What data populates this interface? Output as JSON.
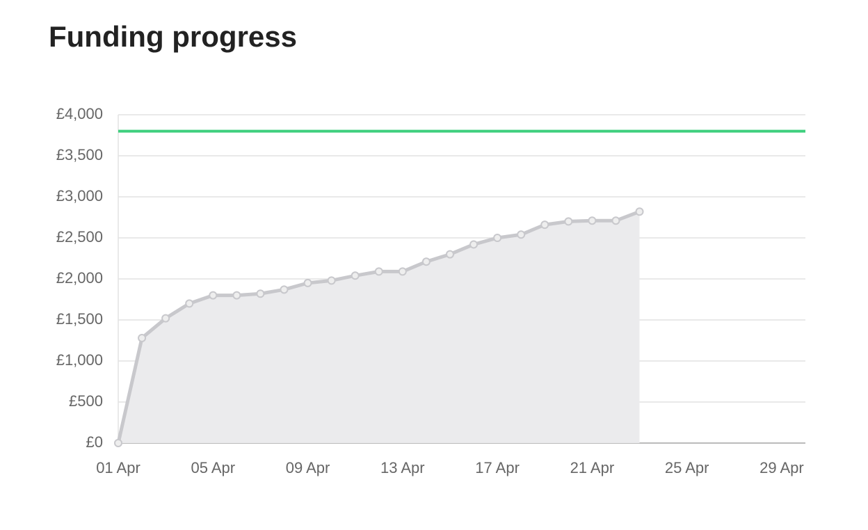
{
  "chart_data": {
    "type": "area",
    "title": "Funding progress",
    "x": [
      "01 Apr",
      "02 Apr",
      "03 Apr",
      "04 Apr",
      "05 Apr",
      "06 Apr",
      "07 Apr",
      "08 Apr",
      "09 Apr",
      "10 Apr",
      "11 Apr",
      "12 Apr",
      "13 Apr",
      "14 Apr",
      "15 Apr",
      "16 Apr",
      "17 Apr",
      "18 Apr",
      "19 Apr",
      "20 Apr",
      "21 Apr",
      "22 Apr",
      "23 Apr"
    ],
    "series": [
      {
        "name": "Funding",
        "color": "#c8c8cc",
        "fill": "#ebebed",
        "values": [
          0,
          1280,
          1520,
          1700,
          1800,
          1800,
          1820,
          1870,
          1950,
          1980,
          2040,
          2090,
          2090,
          2210,
          2300,
          2420,
          2500,
          2540,
          2660,
          2700,
          2710,
          2710,
          2820
        ]
      }
    ],
    "target": {
      "value": 3800,
      "color": "#3ecf7e"
    },
    "xlim": [
      "01 Apr",
      "30 Apr"
    ],
    "xticks": [
      "01 Apr",
      "05 Apr",
      "09 Apr",
      "13 Apr",
      "17 Apr",
      "21 Apr",
      "25 Apr",
      "29 Apr"
    ],
    "ylim": [
      0,
      4000
    ],
    "yticks": [
      {
        "value": 0,
        "label": "£0"
      },
      {
        "value": 500,
        "label": "£500"
      },
      {
        "value": 1000,
        "label": "£1,000"
      },
      {
        "value": 1500,
        "label": "£1,500"
      },
      {
        "value": 2000,
        "label": "£2,000"
      },
      {
        "value": 2500,
        "label": "£2,500"
      },
      {
        "value": 3000,
        "label": "£3,000"
      },
      {
        "value": 3500,
        "label": "£3,500"
      },
      {
        "value": 4000,
        "label": "£4,000"
      }
    ],
    "grid": true
  }
}
